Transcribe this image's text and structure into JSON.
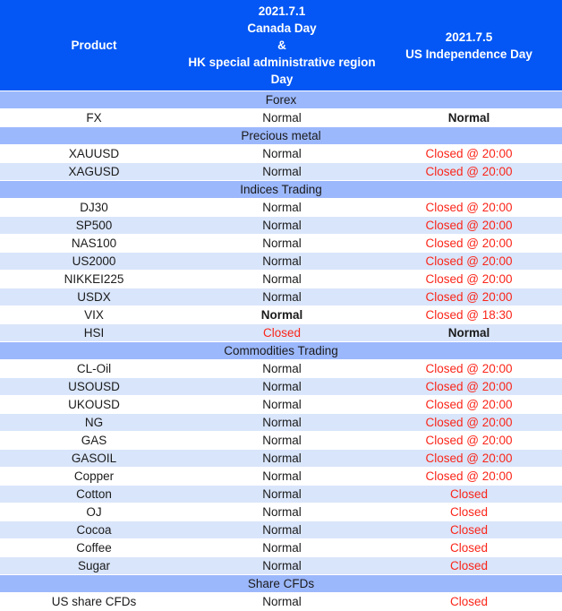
{
  "header": {
    "product_label": "Product",
    "day1_lines": [
      "2021.7.1",
      "Canada Day",
      "&",
      "HK special administrative region",
      "Day"
    ],
    "day2_lines": [
      "2021.7.5",
      "US Independence Day"
    ]
  },
  "sections": [
    {
      "title": "Forex",
      "rows": [
        {
          "product": "FX",
          "day1": {
            "text": "Normal"
          },
          "day2": {
            "text": "Normal",
            "bold": true
          }
        }
      ]
    },
    {
      "title": "Precious metal",
      "rows": [
        {
          "product": "XAUUSD",
          "day1": {
            "text": "Normal"
          },
          "day2": {
            "text": "Closed @ 20:00",
            "red": true
          }
        },
        {
          "product": "XAGUSD",
          "day1": {
            "text": "Normal"
          },
          "day2": {
            "text": "Closed @ 20:00",
            "red": true
          }
        }
      ]
    },
    {
      "title": "Indices Trading",
      "rows": [
        {
          "product": "DJ30",
          "day1": {
            "text": "Normal"
          },
          "day2": {
            "text": "Closed @ 20:00",
            "red": true
          }
        },
        {
          "product": "SP500",
          "day1": {
            "text": "Normal"
          },
          "day2": {
            "text": "Closed @ 20:00",
            "red": true
          }
        },
        {
          "product": "NAS100",
          "day1": {
            "text": "Normal"
          },
          "day2": {
            "text": "Closed @ 20:00",
            "red": true
          }
        },
        {
          "product": "US2000",
          "day1": {
            "text": "Normal"
          },
          "day2": {
            "text": "Closed @ 20:00",
            "red": true
          }
        },
        {
          "product": "NIKKEI225",
          "day1": {
            "text": "Normal"
          },
          "day2": {
            "text": "Closed @ 20:00",
            "red": true
          }
        },
        {
          "product": "USDX",
          "day1": {
            "text": "Normal"
          },
          "day2": {
            "text": "Closed @ 20:00",
            "red": true
          }
        },
        {
          "product": "VIX",
          "day1": {
            "text": "Normal",
            "bold": true
          },
          "day2": {
            "text": "Closed @ 18:30",
            "red": true
          }
        },
        {
          "product": "HSI",
          "day1": {
            "text": "Closed",
            "red": true
          },
          "day2": {
            "text": "Normal",
            "bold": true
          }
        }
      ]
    },
    {
      "title": "Commodities Trading",
      "rows": [
        {
          "product": "CL-Oil",
          "day1": {
            "text": "Normal"
          },
          "day2": {
            "text": "Closed @ 20:00",
            "red": true
          }
        },
        {
          "product": "USOUSD",
          "day1": {
            "text": "Normal"
          },
          "day2": {
            "text": "Closed @ 20:00",
            "red": true
          }
        },
        {
          "product": "UKOUSD",
          "day1": {
            "text": "Normal"
          },
          "day2": {
            "text": "Closed @ 20:00",
            "red": true
          }
        },
        {
          "product": "NG",
          "day1": {
            "text": "Normal"
          },
          "day2": {
            "text": "Closed @ 20:00",
            "red": true
          }
        },
        {
          "product": "GAS",
          "day1": {
            "text": "Normal"
          },
          "day2": {
            "text": "Closed @ 20:00",
            "red": true
          }
        },
        {
          "product": "GASOIL",
          "day1": {
            "text": "Normal"
          },
          "day2": {
            "text": "Closed @ 20:00",
            "red": true
          }
        },
        {
          "product": "Copper",
          "day1": {
            "text": "Normal"
          },
          "day2": {
            "text": "Closed @ 20:00",
            "red": true
          }
        },
        {
          "product": "Cotton",
          "day1": {
            "text": "Normal"
          },
          "day2": {
            "text": "Closed",
            "red": true
          }
        },
        {
          "product": "OJ",
          "day1": {
            "text": "Normal"
          },
          "day2": {
            "text": "Closed",
            "red": true
          }
        },
        {
          "product": "Cocoa",
          "day1": {
            "text": "Normal"
          },
          "day2": {
            "text": "Closed",
            "red": true
          }
        },
        {
          "product": "Coffee",
          "day1": {
            "text": "Normal"
          },
          "day2": {
            "text": "Closed",
            "red": true
          }
        },
        {
          "product": "Sugar",
          "day1": {
            "text": "Normal"
          },
          "day2": {
            "text": "Closed",
            "red": true
          }
        }
      ]
    },
    {
      "title": "Share CFDs",
      "rows": [
        {
          "product": "US share CFDs",
          "day1": {
            "text": "Normal"
          },
          "day2": {
            "text": "Closed",
            "red": true
          }
        }
      ]
    }
  ],
  "colors": {
    "header_bg": "#0457F4",
    "section_bg": "#9CB8FC",
    "row_alt_bg": "#D9E5FA",
    "closed_red": "#FA2519",
    "body_text": "#1B1B1B",
    "header_text": "#FFFFFF"
  }
}
